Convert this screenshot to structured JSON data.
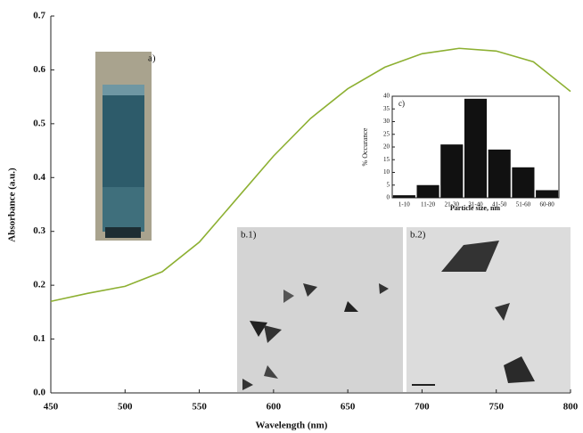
{
  "chart_data": [
    {
      "type": "line",
      "x_label": "Wavelength (nm)",
      "y_label": "Absorbance (a.u.)",
      "x": [
        450,
        475,
        500,
        525,
        550,
        575,
        600,
        625,
        650,
        675,
        700,
        725,
        750,
        775,
        800
      ],
      "series": [
        {
          "color": "#8db032",
          "values": [
            0.17,
            0.185,
            0.198,
            0.225,
            0.28,
            0.36,
            0.44,
            0.51,
            0.565,
            0.605,
            0.63,
            0.64,
            0.635,
            0.615,
            0.56
          ]
        }
      ],
      "xlim": [
        450,
        800
      ],
      "xticks": [
        450,
        500,
        550,
        600,
        650,
        700,
        750,
        800
      ],
      "ylim": [
        0,
        0.7
      ],
      "yticks": [
        {
          "value": 0,
          "label": "0.0"
        },
        0.1,
        0.2,
        0.3,
        0.4,
        0.5,
        0.6,
        0.7
      ]
    },
    {
      "type": "bar",
      "title": "c)",
      "x_label": "Particle size, nm",
      "y_label": "% Occurance",
      "categories": [
        "1-10",
        "11-20",
        "21-30",
        "31-40",
        "41-50",
        "51-60",
        "60-80"
      ],
      "values": [
        1,
        5,
        21,
        39,
        19,
        12,
        3
      ],
      "color": "#111111",
      "ylim": [
        0,
        40
      ],
      "yticks": [
        0,
        5,
        10,
        15,
        20,
        25,
        30,
        35,
        40
      ]
    }
  ],
  "panel_labels": [
    "a)",
    "b.1)",
    "b.2)"
  ]
}
